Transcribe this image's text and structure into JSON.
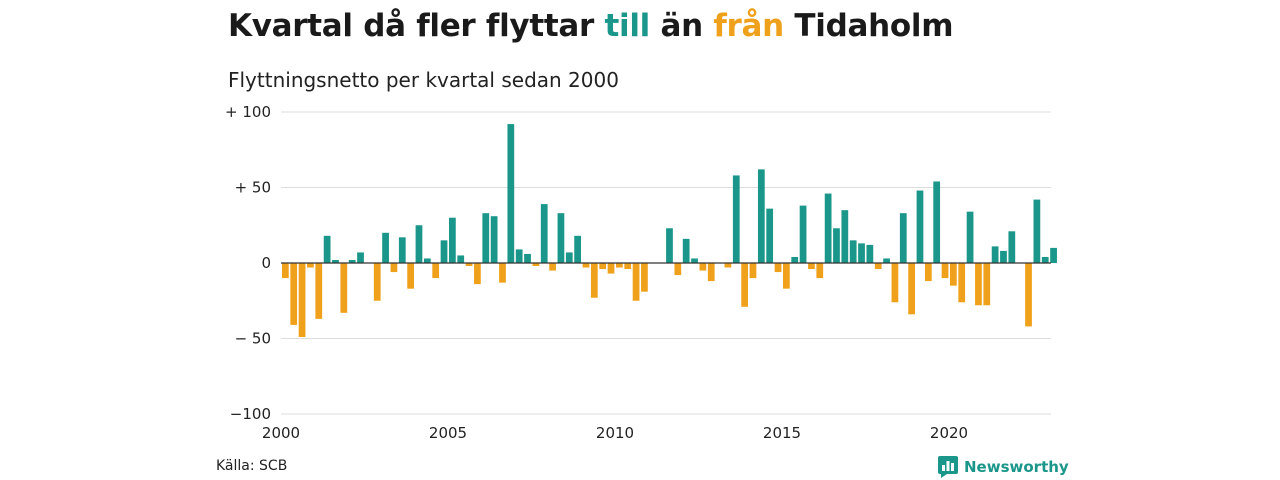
{
  "title": {
    "part1": "Kvartal då fler flyttar ",
    "till": "till",
    "part2": " än ",
    "fran": "från",
    "part3": " Tidaholm"
  },
  "subtitle": "Flyttningsnetto per kvartal sedan 2000",
  "source": "Källa: SCB",
  "brand": {
    "name": "Newsworthy",
    "icon": "newsworthy-logo-icon"
  },
  "colors": {
    "positive": "#1a968a",
    "negative": "#f0a11b",
    "grid": "#dddddd",
    "zero": "#333333"
  },
  "chart_data": {
    "type": "bar",
    "title": "Kvartal då fler flyttar till än från Tidaholm",
    "subtitle": "Flyttningsnetto per kvartal sedan 2000",
    "xlabel": "",
    "ylabel": "",
    "x_start": "2000",
    "x_ticks": [
      "2000",
      "2005",
      "2010",
      "2015",
      "2020"
    ],
    "y_ticks": [
      {
        "value": 100,
        "label": "+ 100"
      },
      {
        "value": 50,
        "label": "+  50"
      },
      {
        "value": 0,
        "label": "0"
      },
      {
        "value": -50,
        "label": "− 50"
      },
      {
        "value": -100,
        "label": "−100"
      }
    ],
    "ylim": [
      -100,
      100
    ],
    "grid": true,
    "series": [
      {
        "values": [
          -10,
          -41,
          -49,
          -3,
          -37,
          18,
          2,
          -33,
          2,
          7,
          0,
          -25,
          20,
          -6,
          17,
          -17,
          25,
          3,
          -10,
          15,
          30,
          5,
          -2,
          -14,
          33,
          31,
          -13,
          92,
          9,
          6,
          -2,
          39,
          -5,
          33,
          7,
          18,
          -3,
          -23,
          -4,
          -7,
          -3,
          -4,
          -25,
          -19,
          0,
          0,
          23,
          -8,
          16,
          3,
          -5,
          -12,
          0,
          -3,
          58,
          -29,
          -10,
          62,
          36,
          -6,
          -17,
          4,
          38,
          -4,
          -10,
          46,
          23,
          35,
          15,
          13,
          12,
          -4,
          3,
          -26,
          33,
          -34,
          48,
          -12,
          54,
          -10,
          -15,
          -26,
          34,
          -28,
          -28,
          11,
          8,
          21,
          0,
          -42,
          42,
          4,
          10
        ]
      }
    ]
  }
}
